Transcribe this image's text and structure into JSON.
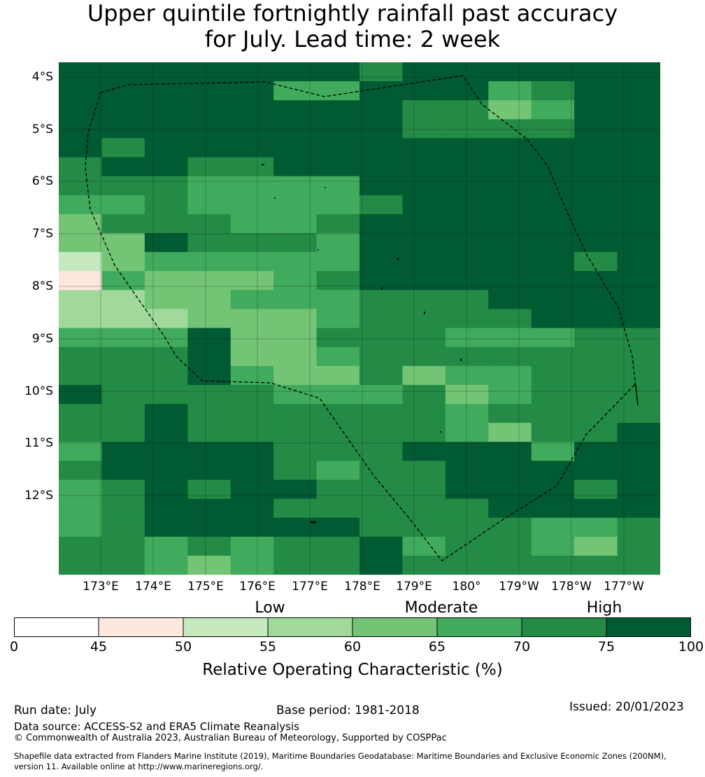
{
  "title": {
    "line1": "Upper quintile fortnightly rainfall past accuracy",
    "line2": "for July. Lead time: 2 week"
  },
  "map": {
    "y_axis_labels": [
      "4°S",
      "5°S",
      "6°S",
      "7°S",
      "8°S",
      "9°S",
      "10°S",
      "11°S",
      "12°S"
    ],
    "x_axis_labels": [
      "173°E",
      "174°E",
      "175°E",
      "176°E",
      "177°E",
      "178°E",
      "179°E",
      "180°",
      "179°W",
      "178°W",
      "177°W"
    ],
    "colors": [
      "#ffffff",
      "#fee8de",
      "#c7e9c0",
      "#a1d99b",
      "#74c476",
      "#41ab5d",
      "#238b45",
      "#005a32"
    ],
    "grid_columns": [
      "172.6°E to 177.4°W in 14 columns"
    ],
    "cells": [
      "77777776777777",
      "77777557775677",
      "77777777664577",
      "77777777666677",
      "76777777777777",
      "67766777777777",
      "66655557777777",
      "55655556777777",
      "46665567777777",
      "44766657777777",
      "24555557777767",
      "15444567777777",
      "33445556667777",
      "33344456666777",
      "55574466655566",
      "66674456666666",
      "66675446455666",
      "76666555645666",
      "66766666656666",
      "66766666654667",
      "57777666777577",
      "67777656677777",
      "56767766677767",
      "56777666667777",
      "56777776666556",
      "66565667566546",
      "66545667666666"
    ]
  },
  "colorbar": {
    "categories": [
      "Low",
      "Moderate",
      "High"
    ],
    "ticks": [
      "0",
      "45",
      "50",
      "55",
      "60",
      "65",
      "70",
      "75",
      "100"
    ],
    "title": "Relative Operating Characteristic (%)"
  },
  "footer": {
    "run_date": "Run date: July",
    "base_period": "Base period: 1981-2018",
    "issued": "Issued: 20/01/2023",
    "data_source": "Data source: ACCESS-S2 and ERA5 Climate Reanalysis",
    "copyright": "© Commonwealth of Australia 2023, Australian Bureau of Meteorology, Supported by COSPPac",
    "shapefile_line1": "Shapefile data extracted from Flanders Marine Institute (2019), Maritime Boundaries Geodatabase: Maritime Boundaries and Exclusive Economic Zones (200NM),",
    "shapefile_line2": "version 11. Available online at http://www.marineregions.org/."
  }
}
